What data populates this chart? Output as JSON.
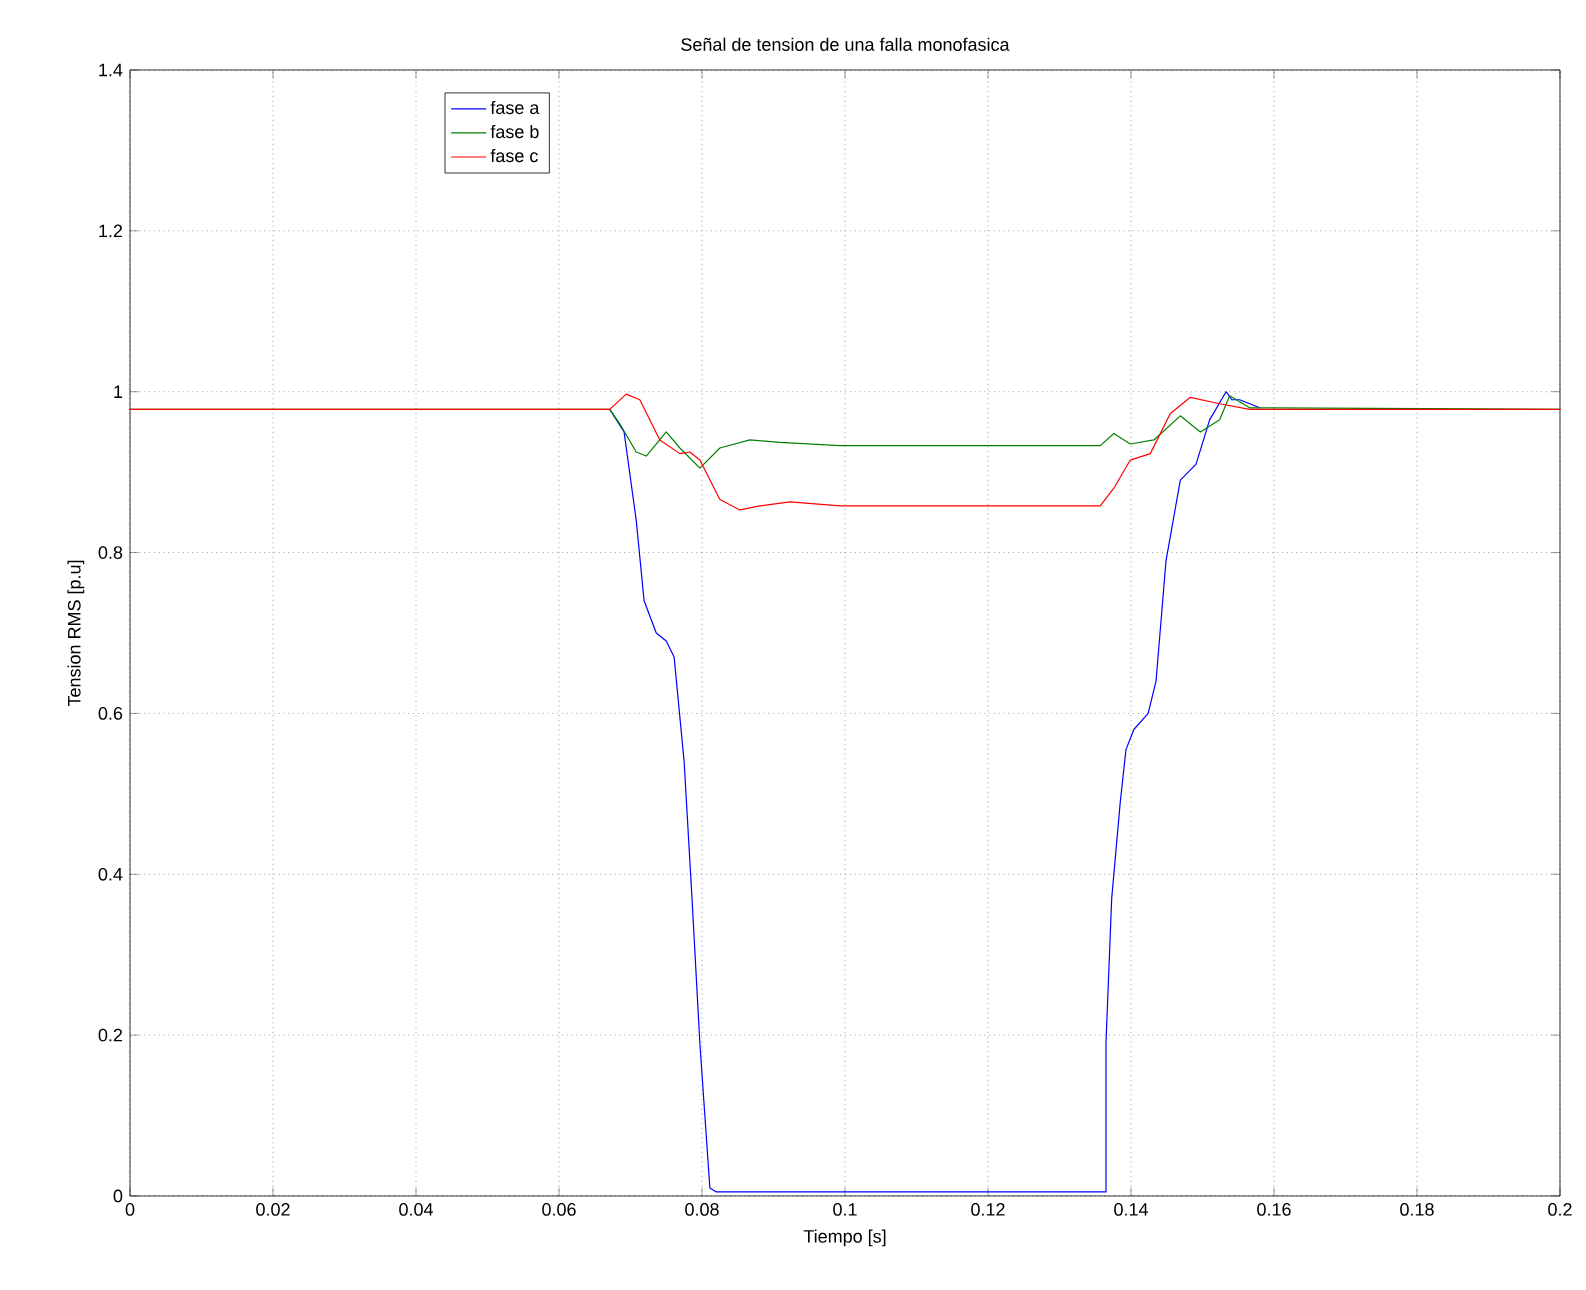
{
  "chart_data": {
    "type": "line",
    "title": "Señal de tension de una falla monofasica",
    "xlabel": "Tiempo [s]",
    "ylabel": "Tension RMS [p.u]",
    "xlim": [
      0,
      0.2
    ],
    "ylim": [
      0,
      1.4
    ],
    "xticks": [
      0,
      0.02,
      0.04,
      0.06,
      0.08,
      0.1,
      0.12,
      0.14,
      0.16,
      0.18,
      0.2
    ],
    "yticks": [
      0,
      0.2,
      0.4,
      0.6,
      0.8,
      1,
      1.2,
      1.4
    ],
    "grid": true,
    "legend": "top left",
    "line_style": "solid",
    "marker": "none",
    "series": [
      {
        "name": "fase a",
        "color": "#0000ff",
        "x": [
          0.0671,
          0.0691,
          0.0708,
          0.0719,
          0.0736,
          0.075,
          0.0761,
          0.0775,
          0.0786,
          0.0797,
          0.0811,
          0.082,
          0.1365,
          0.1365,
          0.1373,
          0.1385,
          0.1393,
          0.1404,
          0.1424,
          0.1435,
          0.1449,
          0.1469,
          0.1491,
          0.151,
          0.1533,
          0.1541,
          0.1552,
          0.158
        ],
        "values": [
          0.978,
          0.95,
          0.84,
          0.74,
          0.7,
          0.69,
          0.67,
          0.54,
          0.37,
          0.19,
          0.01,
          0.005,
          0.005,
          0.19,
          0.37,
          0.49,
          0.555,
          0.58,
          0.6,
          0.64,
          0.79,
          0.89,
          0.91,
          0.965,
          1.0,
          0.99,
          0.99,
          0.98
        ]
      },
      {
        "name": "fase b",
        "color": "#008000",
        "x": [
          0,
          0.0671,
          0.0685,
          0.0708,
          0.0722,
          0.075,
          0.0769,
          0.0797,
          0.0825,
          0.0867,
          0.0909,
          0.0993,
          0.1357,
          0.1376,
          0.1399,
          0.1432,
          0.1469,
          0.1497,
          0.1524,
          0.1538,
          0.1566,
          0.2
        ],
        "values": [
          0.978,
          0.978,
          0.96,
          0.925,
          0.92,
          0.95,
          0.93,
          0.905,
          0.93,
          0.94,
          0.937,
          0.933,
          0.933,
          0.948,
          0.935,
          0.94,
          0.97,
          0.95,
          0.965,
          0.995,
          0.98,
          0.978
        ]
      },
      {
        "name": "fase c",
        "color": "#ff0000",
        "x": [
          0,
          0.0671,
          0.0694,
          0.0713,
          0.0741,
          0.0769,
          0.0783,
          0.0797,
          0.0825,
          0.0853,
          0.0881,
          0.0923,
          0.0993,
          0.1357,
          0.1376,
          0.1399,
          0.1427,
          0.1455,
          0.1483,
          0.1524,
          0.1566,
          0.2
        ],
        "values": [
          0.978,
          0.978,
          0.997,
          0.99,
          0.94,
          0.923,
          0.925,
          0.915,
          0.866,
          0.853,
          0.858,
          0.863,
          0.858,
          0.858,
          0.88,
          0.915,
          0.923,
          0.973,
          0.993,
          0.985,
          0.978,
          0.978
        ]
      }
    ]
  }
}
